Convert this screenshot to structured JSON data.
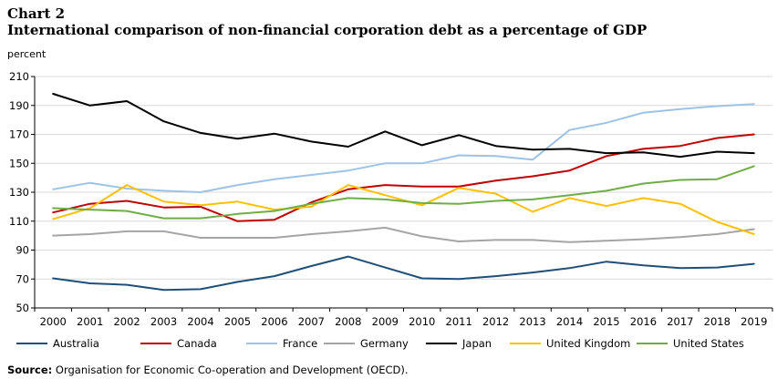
{
  "header": {
    "chart_number": "Chart 2",
    "title": "International comparison of non-financial corporation debt as a percentage of GDP",
    "unit": "percent"
  },
  "chart_data": {
    "type": "line",
    "title": "International comparison of non-financial corporation debt as a percentage of GDP",
    "ylabel": "percent",
    "xlabel": "",
    "ylim": [
      50,
      210
    ],
    "yticks": [
      50,
      70,
      90,
      110,
      130,
      150,
      170,
      190,
      210
    ],
    "grid": "horizontal",
    "legend": "bottom",
    "x": [
      "2000",
      "2001",
      "2002",
      "2003",
      "2004",
      "2005",
      "2006",
      "2007",
      "2008",
      "2009",
      "2010",
      "2011",
      "2012",
      "2013",
      "2014",
      "2015",
      "2016",
      "2017",
      "2018",
      "2019"
    ],
    "series": [
      {
        "name": "Australia",
        "color": "#1f4e79",
        "values": [
          70.5,
          67,
          66,
          62.5,
          63,
          68,
          72,
          79,
          85.5,
          78,
          70.5,
          70,
          72,
          74.5,
          77.5,
          82,
          79.5,
          77.5,
          78,
          80.5
        ]
      },
      {
        "name": "Canada",
        "color": "#c00000",
        "values": [
          116,
          122,
          124,
          119.5,
          120,
          110,
          111,
          123,
          132,
          135,
          134,
          134,
          138,
          141,
          145,
          155,
          160,
          162,
          167.5,
          170
        ]
      },
      {
        "name": "France",
        "color": "#9dc3e6",
        "values": [
          132,
          136.5,
          132.5,
          131,
          130,
          135,
          139,
          142,
          145,
          150,
          150,
          155.5,
          155,
          152.5,
          173,
          178,
          185,
          187.5,
          189.5,
          191
        ]
      },
      {
        "name": "Germany",
        "color": "#a5a5a5",
        "values": [
          100,
          101,
          103,
          103,
          98.5,
          98.5,
          98.5,
          101,
          103,
          105.5,
          99.5,
          96,
          97,
          97,
          95.5,
          96.5,
          97.5,
          99,
          101,
          104.5
        ]
      },
      {
        "name": "Japan",
        "color": "#000000",
        "values": [
          198,
          190,
          193,
          179,
          171,
          167,
          170.5,
          165,
          161.5,
          172,
          162.5,
          169.5,
          162,
          159.5,
          160,
          157,
          157.5,
          154.5,
          158,
          157
        ]
      },
      {
        "name": "United Kingdom",
        "color": "#ffc000",
        "values": [
          111.5,
          119,
          135,
          123.5,
          121,
          123.5,
          118,
          120,
          135,
          128,
          121,
          133,
          129,
          116.5,
          126,
          120.5,
          126,
          122,
          109.5,
          101
        ]
      },
      {
        "name": "United States",
        "color": "#70ad47",
        "values": [
          119,
          118,
          117,
          112,
          112,
          115,
          117,
          122,
          126,
          125,
          122.5,
          122,
          124,
          125,
          128,
          131,
          136,
          138.5,
          139,
          148
        ]
      }
    ]
  },
  "source": {
    "label": "Source:",
    "text": " Organisation for Economic Co-operation and Development (OECD)."
  }
}
